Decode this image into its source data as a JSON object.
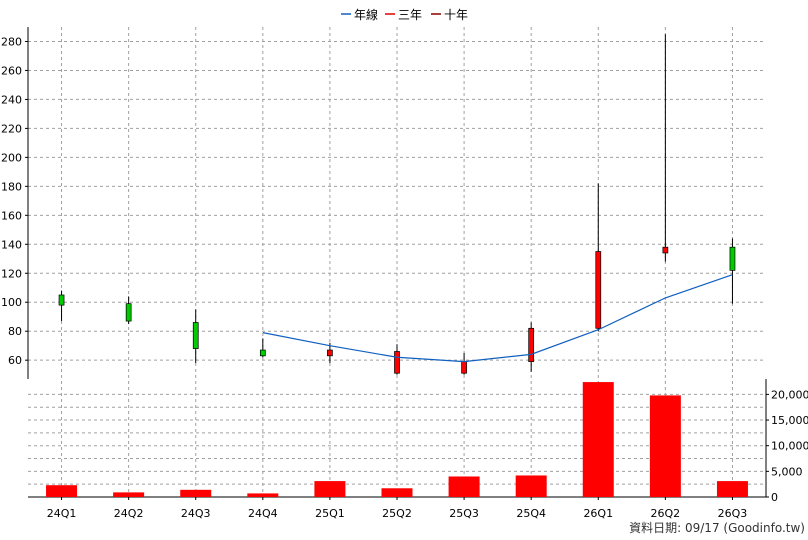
{
  "chart_data": {
    "type": "candlestick",
    "categories": [
      "24Q1",
      "24Q2",
      "24Q3",
      "24Q4",
      "25Q1",
      "25Q2",
      "25Q3",
      "25Q4",
      "26Q1",
      "26Q2",
      "26Q3"
    ],
    "candles": [
      {
        "open": 98,
        "close": 105,
        "high": 108,
        "low": 87
      },
      {
        "open": 87,
        "close": 99,
        "high": 104,
        "low": 85
      },
      {
        "open": 68,
        "close": 86,
        "high": 95,
        "low": 58
      },
      {
        "open": 63,
        "close": 67,
        "high": 75,
        "low": 62
      },
      {
        "open": 67,
        "close": 63,
        "high": 72,
        "low": 58
      },
      {
        "open": 66,
        "close": 51,
        "high": 71,
        "low": 50
      },
      {
        "open": 59,
        "close": 51,
        "high": 65,
        "low": 50
      },
      {
        "open": 82,
        "close": 59,
        "high": 86,
        "low": 52
      },
      {
        "open": 135,
        "close": 82,
        "high": 182,
        "low": 80
      },
      {
        "open": 138,
        "close": 134,
        "high": 285,
        "low": 128
      },
      {
        "open": 122,
        "close": 138,
        "high": 144,
        "low": 99
      }
    ],
    "candle_colors": {
      "up": "#00cc00",
      "down": "#ff0000",
      "outline": "#000000"
    },
    "year_line": {
      "name": "年線",
      "color": "#1060c0",
      "values": [
        null,
        null,
        null,
        79,
        70,
        62,
        59,
        64,
        81,
        103,
        119
      ]
    },
    "legend": [
      {
        "label": "年線",
        "color": "#1060c0"
      },
      {
        "label": "三年",
        "color": "#dd0000"
      },
      {
        "label": "十年",
        "color": "#8b0000"
      }
    ],
    "price_axis": {
      "ylim": [
        47,
        290
      ],
      "ticks": [
        60,
        80,
        100,
        120,
        140,
        160,
        180,
        200,
        220,
        240,
        260,
        280
      ]
    },
    "volume": {
      "values": [
        2300,
        900,
        1400,
        700,
        3100,
        1700,
        4000,
        4200,
        22400,
        19800,
        3100
      ],
      "color": "#ff0000",
      "ylim": [
        0,
        23000
      ],
      "ticks": [
        0,
        5000,
        10000,
        15000,
        20000
      ],
      "tick_labels": [
        "0",
        "5,000",
        "10,000",
        "15,000",
        "20,000"
      ]
    },
    "grid": true
  },
  "footer": "資料日期: 09/17  (Goodinfo.tw)"
}
